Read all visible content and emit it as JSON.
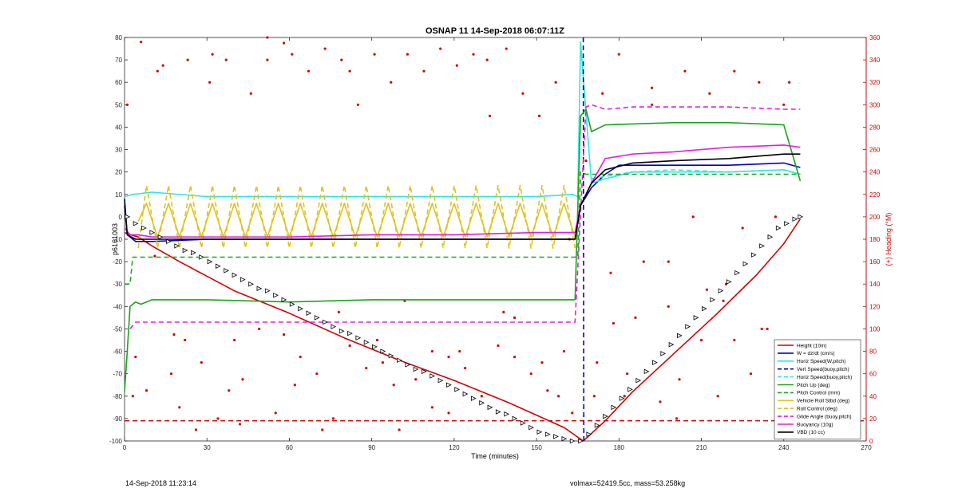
{
  "chart_data": {
    "type": "line",
    "title": "OSNAP 11 14-Sep-2018 06:07:11Z",
    "xlabel": "Time (minutes)",
    "ylabel": "p6161003",
    "y2label": "(+) Heading (°M)",
    "xlim": [
      0,
      270
    ],
    "ylim": [
      -100,
      80
    ],
    "y2lim": [
      0,
      360
    ],
    "xticks": [
      0,
      30,
      60,
      90,
      120,
      150,
      180,
      210,
      240,
      270
    ],
    "yticks": [
      -100,
      -90,
      -80,
      -70,
      -60,
      -50,
      -40,
      -30,
      -20,
      -10,
      0,
      10,
      20,
      30,
      40,
      50,
      60,
      70,
      80
    ],
    "y2ticks": [
      0,
      20,
      40,
      60,
      80,
      100,
      120,
      140,
      160,
      180,
      200,
      220,
      240,
      260,
      280,
      300,
      320,
      340,
      360
    ],
    "grid": false,
    "legend_position": "bottom-right",
    "colors": {
      "red": "#d40000",
      "blue": "#0000c8",
      "cyan": "#2ee6e6",
      "green": "#1aa51a",
      "yellow": "#e0c21c",
      "magenta": "#e21ee2",
      "black": "#000000",
      "right_axis": "#d40000"
    },
    "series": [
      {
        "name": "Height (10m)",
        "color": "red",
        "style": "solid",
        "x": [
          0,
          2,
          5,
          10,
          20,
          40,
          60,
          80,
          100,
          120,
          140,
          160,
          167,
          175,
          185,
          200,
          215,
          230,
          240,
          246
        ],
        "y": [
          -7,
          -8,
          -9,
          -13,
          -20,
          -33,
          -43,
          -54,
          -64,
          -73,
          -83,
          -94,
          -100,
          -91,
          -78,
          -61,
          -44,
          -26,
          -12,
          -1
        ]
      },
      {
        "name": "W = dz/dt (cm/s)",
        "color": "blue",
        "style": "solid",
        "x": [
          0,
          1,
          4,
          10,
          30,
          60,
          90,
          120,
          150,
          164,
          166,
          170,
          175,
          180,
          200,
          220,
          240,
          246
        ],
        "y": [
          5,
          -8,
          -11,
          -11,
          -10,
          -10,
          -10,
          -10,
          -10,
          -10,
          5,
          13,
          19,
          23,
          23,
          23,
          24,
          22
        ]
      },
      {
        "name": "Horiz Speed(W,pitch)",
        "color": "cyan",
        "style": "solid",
        "x": [
          0,
          3,
          10,
          30,
          60,
          90,
          120,
          150,
          163,
          165,
          166,
          170,
          175,
          185,
          200,
          220,
          240,
          246
        ],
        "y": [
          9,
          10,
          11,
          9,
          9,
          9,
          9,
          9,
          10,
          9,
          78,
          15,
          17,
          20,
          20,
          20,
          21,
          19
        ]
      },
      {
        "name": "Vert Speed(buoy,pitch)",
        "color": "blue",
        "style": "dashed",
        "x": [
          167,
          167.2
        ],
        "y": [
          80,
          -100
        ]
      },
      {
        "name": "Horiz Speed(buoy,pitch)",
        "color": "cyan",
        "style": "dashed",
        "x": [
          170,
          185,
          200,
          220,
          240,
          246
        ],
        "y": [
          17,
          20,
          21,
          20,
          21,
          19
        ]
      },
      {
        "name": "Pitch Up (deg)",
        "color": "green",
        "style": "solid",
        "x": [
          0,
          1,
          2,
          4,
          6,
          10,
          30,
          60,
          90,
          120,
          150,
          164,
          166,
          168,
          170,
          175,
          200,
          220,
          240,
          246
        ],
        "y": [
          -78,
          -60,
          -40,
          -38,
          -39,
          -37,
          -37,
          -38,
          -37,
          -37,
          -37,
          -37,
          45,
          48,
          38,
          41,
          42,
          42,
          41,
          16
        ]
      },
      {
        "name": "Pitch Control (mm)",
        "color": "green",
        "style": "dashed",
        "x": [
          0,
          2,
          3,
          163,
          165,
          166,
          168,
          246
        ],
        "y": [
          -30,
          -30,
          -18,
          -18,
          -18,
          20,
          19,
          19
        ]
      },
      {
        "name": "Vehicle Roll Stbd (deg)",
        "color": "yellow",
        "style": "solid",
        "x": [
          5,
          8,
          12,
          16,
          20,
          24,
          28,
          32,
          36,
          40,
          44,
          48,
          52,
          56,
          60,
          64,
          68,
          72,
          76,
          80,
          84,
          88,
          92,
          96,
          100,
          104,
          108,
          112,
          116,
          120,
          124,
          128,
          132,
          136,
          140,
          144,
          148,
          152,
          156,
          160,
          164
        ],
        "y": [
          -2,
          6,
          -9,
          6,
          -9,
          6,
          -9,
          6,
          -9,
          6,
          -9,
          6,
          -9,
          6,
          -9,
          6,
          -9,
          6,
          -9,
          6,
          -9,
          6,
          -9,
          6,
          -9,
          6,
          -9,
          6,
          -9,
          6,
          -9,
          6,
          -9,
          6,
          -9,
          6,
          -9,
          6,
          -9,
          6,
          -9
        ]
      },
      {
        "name": "Roll Control (deg)",
        "color": "yellow",
        "style": "dashed",
        "x": [
          5,
          8,
          12,
          16,
          20,
          24,
          28,
          32,
          36,
          40,
          44,
          48,
          52,
          56,
          60,
          64,
          68,
          72,
          76,
          80,
          84,
          88,
          92,
          96,
          100,
          104,
          108,
          112,
          116,
          120,
          124,
          128,
          132,
          136,
          140,
          144,
          148,
          152,
          156,
          160,
          164
        ],
        "y": [
          -14,
          14,
          -14,
          14,
          -14,
          14,
          -14,
          14,
          -14,
          14,
          -14,
          14,
          -14,
          14,
          -14,
          14,
          -14,
          14,
          -14,
          14,
          -14,
          14,
          -14,
          14,
          -14,
          14,
          -14,
          14,
          -14,
          14,
          -14,
          14,
          -14,
          14,
          -14,
          14,
          -14,
          14,
          -14,
          14,
          -14
        ]
      },
      {
        "name": "Glide Angle (buoy,pitch)",
        "color": "magenta",
        "style": "dashed",
        "x": [
          2,
          4,
          10,
          30,
          60,
          90,
          120,
          150,
          164,
          168,
          170,
          175,
          185,
          200,
          220,
          240,
          246
        ],
        "y": [
          -50,
          -47,
          -47,
          -47,
          -47,
          -47,
          -47,
          -47,
          -47,
          49,
          50,
          48,
          49,
          49,
          49,
          48,
          48
        ]
      },
      {
        "name": "Buoyancy (10g)",
        "color": "magenta",
        "style": "solid",
        "x": [
          0,
          2,
          5,
          10,
          30,
          60,
          90,
          120,
          150,
          164,
          166,
          170,
          175,
          185,
          200,
          220,
          240,
          246
        ],
        "y": [
          -5,
          -8,
          -8,
          -9,
          -9,
          -9,
          -8,
          -8,
          -7,
          -7,
          5,
          15,
          26,
          28,
          29,
          31,
          32,
          31
        ]
      },
      {
        "name": "VBD (10 cc)",
        "color": "black",
        "style": "solid",
        "x": [
          0,
          1,
          4,
          10,
          30,
          60,
          90,
          120,
          150,
          164,
          166,
          170,
          175,
          185,
          200,
          220,
          240,
          246
        ],
        "y": [
          8,
          -8,
          -10,
          -10,
          -10,
          -10,
          -10,
          -10,
          -10,
          -10,
          5,
          15,
          21,
          24,
          25,
          26,
          28,
          28
        ]
      }
    ],
    "reference_line": {
      "y": -91,
      "color": "red",
      "style": "dashed"
    },
    "heading_points": {
      "axis": "right",
      "color": "red",
      "x": [
        1,
        3,
        6,
        8,
        11,
        14,
        17,
        20,
        23,
        26,
        28,
        31,
        34,
        37,
        40,
        43,
        46,
        49,
        52,
        55,
        58,
        61,
        64,
        67,
        70,
        73,
        76,
        79,
        82,
        85,
        88,
        91,
        94,
        97,
        100,
        103,
        106,
        109,
        112,
        115,
        118,
        121,
        124,
        127,
        130,
        133,
        136,
        139,
        142,
        145,
        148,
        151,
        154,
        157,
        160,
        163,
        168,
        171,
        174,
        177,
        180,
        183,
        186,
        189,
        192,
        195,
        198,
        201,
        204,
        207,
        210,
        213,
        216,
        219,
        222,
        225,
        228,
        231,
        234,
        237,
        240,
        243,
        4,
        12,
        22,
        32,
        42,
        52,
        62,
        72,
        82,
        92,
        102,
        112,
        122,
        132,
        142,
        152,
        162,
        172,
        182,
        192,
        202,
        212,
        222,
        232,
        242,
        18,
        38,
        58,
        78,
        98,
        118,
        138,
        158,
        178,
        198,
        218,
        238
      ],
      "y": [
        300,
        40,
        356,
        45,
        165,
        335,
        60,
        30,
        340,
        10,
        70,
        320,
        20,
        340,
        90,
        55,
        310,
        100,
        340,
        25,
        95,
        345,
        75,
        330,
        60,
        350,
        20,
        340,
        85,
        300,
        65,
        345,
        70,
        320,
        10,
        345,
        55,
        330,
        80,
        350,
        25,
        335,
        65,
        345,
        40,
        290,
        85,
        350,
        75,
        310,
        60,
        290,
        45,
        320,
        80,
        25,
        250,
        40,
        310,
        150,
        345,
        60,
        110,
        160,
        300,
        35,
        120,
        20,
        330,
        200,
        90,
        310,
        40,
        140,
        330,
        190,
        60,
        320,
        100,
        200,
        300,
        60,
        75,
        330,
        90,
        345,
        15,
        360,
        50,
        10,
        330,
        90,
        125,
        30,
        80,
        340,
        110,
        70,
        180,
        70,
        40,
        315,
        55,
        135,
        90,
        100,
        320,
        95,
        45,
        355,
        115,
        50,
        75,
        115,
        40,
        105,
        160,
        125,
        75
      ]
    },
    "depth_markers": {
      "x": [
        1,
        4,
        7,
        10,
        13,
        16,
        19,
        22,
        25,
        28,
        31,
        34,
        37,
        40,
        43,
        46,
        49,
        52,
        55,
        58,
        61,
        64,
        67,
        70,
        73,
        76,
        79,
        82,
        85,
        88,
        91,
        94,
        97,
        100,
        103,
        106,
        109,
        112,
        115,
        118,
        121,
        124,
        127,
        130,
        133,
        136,
        139,
        142,
        145,
        148,
        151,
        154,
        157,
        160,
        163,
        166,
        169,
        172,
        175,
        178,
        181,
        184,
        187,
        190,
        193,
        196,
        199,
        202,
        205,
        208,
        211,
        214,
        217,
        220,
        223,
        226,
        229,
        232,
        235,
        238,
        241,
        244,
        246
      ],
      "y": [
        0,
        -3,
        -5,
        -7,
        -9,
        -11,
        -13,
        -15,
        -16,
        -18,
        -20,
        -22,
        -24,
        -26,
        -28,
        -30,
        -32,
        -33,
        -35,
        -37,
        -39,
        -41,
        -43,
        -45,
        -47,
        -49,
        -51,
        -52,
        -54,
        -56,
        -58,
        -60,
        -62,
        -64,
        -66,
        -68,
        -69,
        -71,
        -73,
        -75,
        -77,
        -79,
        -81,
        -83,
        -85,
        -87,
        -88,
        -90,
        -92,
        -94,
        -96,
        -97,
        -98,
        -99,
        -100,
        -100,
        -97,
        -93,
        -89,
        -85,
        -81,
        -77,
        -73,
        -69,
        -65,
        -61,
        -57,
        -53,
        -49,
        -45,
        -41,
        -37,
        -33,
        -29,
        -25,
        -21,
        -17,
        -13,
        -9,
        -5,
        -3,
        -1,
        0
      ]
    }
  },
  "footer": {
    "left": "14-Sep-2018 11:23:14",
    "right": "volmax=52419.5cc, mass=53.258kg"
  }
}
